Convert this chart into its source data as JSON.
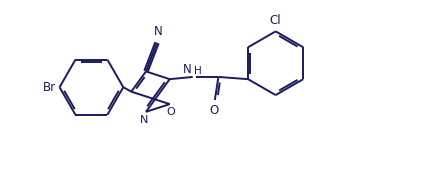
{
  "bg_color": "#ffffff",
  "line_color": "#1a1a5e",
  "line_width": 1.4,
  "font_size": 8.5,
  "figsize": [
    4.44,
    1.7
  ],
  "dpi": 100,
  "xlim": [
    0,
    10
  ],
  "ylim": [
    0,
    3.8
  ]
}
